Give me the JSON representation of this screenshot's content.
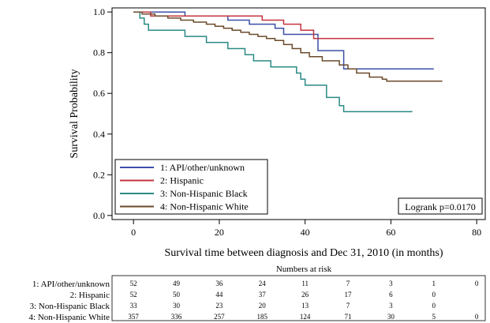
{
  "chart_data": {
    "type": "line",
    "subtype": "kaplan-meier step curves",
    "xlabel": "Survival time between diagnosis and Dec 31, 2010 (in months)",
    "ylabel": "Survival Probability",
    "xlim": [
      -5,
      82
    ],
    "ylim": [
      -0.02,
      1.02
    ],
    "x_ticks": [
      0,
      20,
      40,
      60,
      80
    ],
    "y_ticks": [
      0.0,
      0.2,
      0.4,
      0.6,
      0.8,
      1.0
    ],
    "y_tick_labels": [
      "0.0",
      "0.2",
      "0.4",
      "0.6",
      "0.8",
      "1.0"
    ],
    "grid": false,
    "legend_position": "bottom-left",
    "annotation": "Logrank p=0.0170",
    "series": [
      {
        "name": "1: API/other/unknown",
        "color": "#3c4fa8",
        "points": [
          [
            0,
            1.0
          ],
          [
            12,
            1.0
          ],
          [
            12,
            0.98
          ],
          [
            22,
            0.98
          ],
          [
            22,
            0.96
          ],
          [
            27,
            0.96
          ],
          [
            27,
            0.94
          ],
          [
            33,
            0.94
          ],
          [
            33,
            0.92
          ],
          [
            35,
            0.92
          ],
          [
            35,
            0.89
          ],
          [
            43,
            0.89
          ],
          [
            43,
            0.81
          ],
          [
            49,
            0.81
          ],
          [
            49,
            0.72
          ],
          [
            70,
            0.72
          ]
        ]
      },
      {
        "name": "2: Hispanic",
        "color": "#c43440",
        "points": [
          [
            0,
            1.0
          ],
          [
            4,
            1.0
          ],
          [
            4,
            0.98
          ],
          [
            30,
            0.98
          ],
          [
            30,
            0.96
          ],
          [
            35,
            0.96
          ],
          [
            35,
            0.94
          ],
          [
            39,
            0.94
          ],
          [
            39,
            0.91
          ],
          [
            42,
            0.91
          ],
          [
            42,
            0.87
          ],
          [
            70,
            0.87
          ]
        ]
      },
      {
        "name": "3: Non-Hispanic Black",
        "color": "#2a8a84",
        "points": [
          [
            0,
            1.0
          ],
          [
            1.5,
            1.0
          ],
          [
            1.5,
            0.97
          ],
          [
            2.5,
            0.97
          ],
          [
            2.5,
            0.94
          ],
          [
            3.5,
            0.94
          ],
          [
            3.5,
            0.91
          ],
          [
            12,
            0.91
          ],
          [
            12,
            0.88
          ],
          [
            17,
            0.88
          ],
          [
            17,
            0.85
          ],
          [
            22,
            0.85
          ],
          [
            22,
            0.82
          ],
          [
            26,
            0.82
          ],
          [
            26,
            0.79
          ],
          [
            28,
            0.79
          ],
          [
            28,
            0.76
          ],
          [
            32,
            0.76
          ],
          [
            32,
            0.73
          ],
          [
            38,
            0.73
          ],
          [
            38,
            0.7
          ],
          [
            39,
            0.7
          ],
          [
            39,
            0.67
          ],
          [
            40,
            0.67
          ],
          [
            40,
            0.64
          ],
          [
            45,
            0.64
          ],
          [
            45,
            0.58
          ],
          [
            48,
            0.58
          ],
          [
            48,
            0.54
          ],
          [
            49,
            0.54
          ],
          [
            49,
            0.51
          ],
          [
            65,
            0.51
          ]
        ]
      },
      {
        "name": "4: Non-Hispanic White",
        "color": "#6b4a2a",
        "points": [
          [
            0,
            1.0
          ],
          [
            2,
            1.0
          ],
          [
            2,
            0.99
          ],
          [
            5,
            0.99
          ],
          [
            5,
            0.98
          ],
          [
            8,
            0.98
          ],
          [
            8,
            0.97
          ],
          [
            11,
            0.97
          ],
          [
            11,
            0.96
          ],
          [
            14,
            0.96
          ],
          [
            14,
            0.95
          ],
          [
            17,
            0.95
          ],
          [
            17,
            0.94
          ],
          [
            19,
            0.94
          ],
          [
            19,
            0.93
          ],
          [
            21,
            0.93
          ],
          [
            21,
            0.92
          ],
          [
            23,
            0.92
          ],
          [
            23,
            0.91
          ],
          [
            25,
            0.91
          ],
          [
            25,
            0.9
          ],
          [
            27,
            0.9
          ],
          [
            27,
            0.89
          ],
          [
            29,
            0.89
          ],
          [
            29,
            0.88
          ],
          [
            31,
            0.88
          ],
          [
            31,
            0.87
          ],
          [
            33,
            0.87
          ],
          [
            33,
            0.86
          ],
          [
            35,
            0.86
          ],
          [
            35,
            0.84
          ],
          [
            37,
            0.84
          ],
          [
            37,
            0.82
          ],
          [
            39,
            0.82
          ],
          [
            39,
            0.8
          ],
          [
            41,
            0.8
          ],
          [
            41,
            0.78
          ],
          [
            44,
            0.78
          ],
          [
            44,
            0.76
          ],
          [
            48,
            0.76
          ],
          [
            48,
            0.74
          ],
          [
            50,
            0.74
          ],
          [
            50,
            0.72
          ],
          [
            52,
            0.72
          ],
          [
            52,
            0.7
          ],
          [
            55,
            0.7
          ],
          [
            55,
            0.68
          ],
          [
            58,
            0.68
          ],
          [
            58,
            0.67
          ],
          [
            59,
            0.67
          ],
          [
            59,
            0.66
          ],
          [
            72,
            0.66
          ]
        ]
      }
    ],
    "risk_table": {
      "title": "Numbers at risk",
      "times": [
        0,
        10,
        20,
        30,
        40,
        50,
        60,
        70,
        80
      ],
      "rows": [
        {
          "label": "1: API/other/unknown",
          "values": [
            "52",
            "49",
            "36",
            "24",
            "11",
            "7",
            "3",
            "1",
            "0"
          ]
        },
        {
          "label": "2: Hispanic",
          "values": [
            "52",
            "50",
            "44",
            "37",
            "26",
            "17",
            "6",
            "0",
            ""
          ]
        },
        {
          "label": "3: Non-Hispanic Black",
          "values": [
            "33",
            "30",
            "23",
            "20",
            "13",
            "7",
            "3",
            "0",
            ""
          ]
        },
        {
          "label": "4: Non-Hispanic White",
          "values": [
            "357",
            "336",
            "257",
            "185",
            "124",
            "71",
            "30",
            "5",
            "0"
          ]
        }
      ]
    }
  }
}
